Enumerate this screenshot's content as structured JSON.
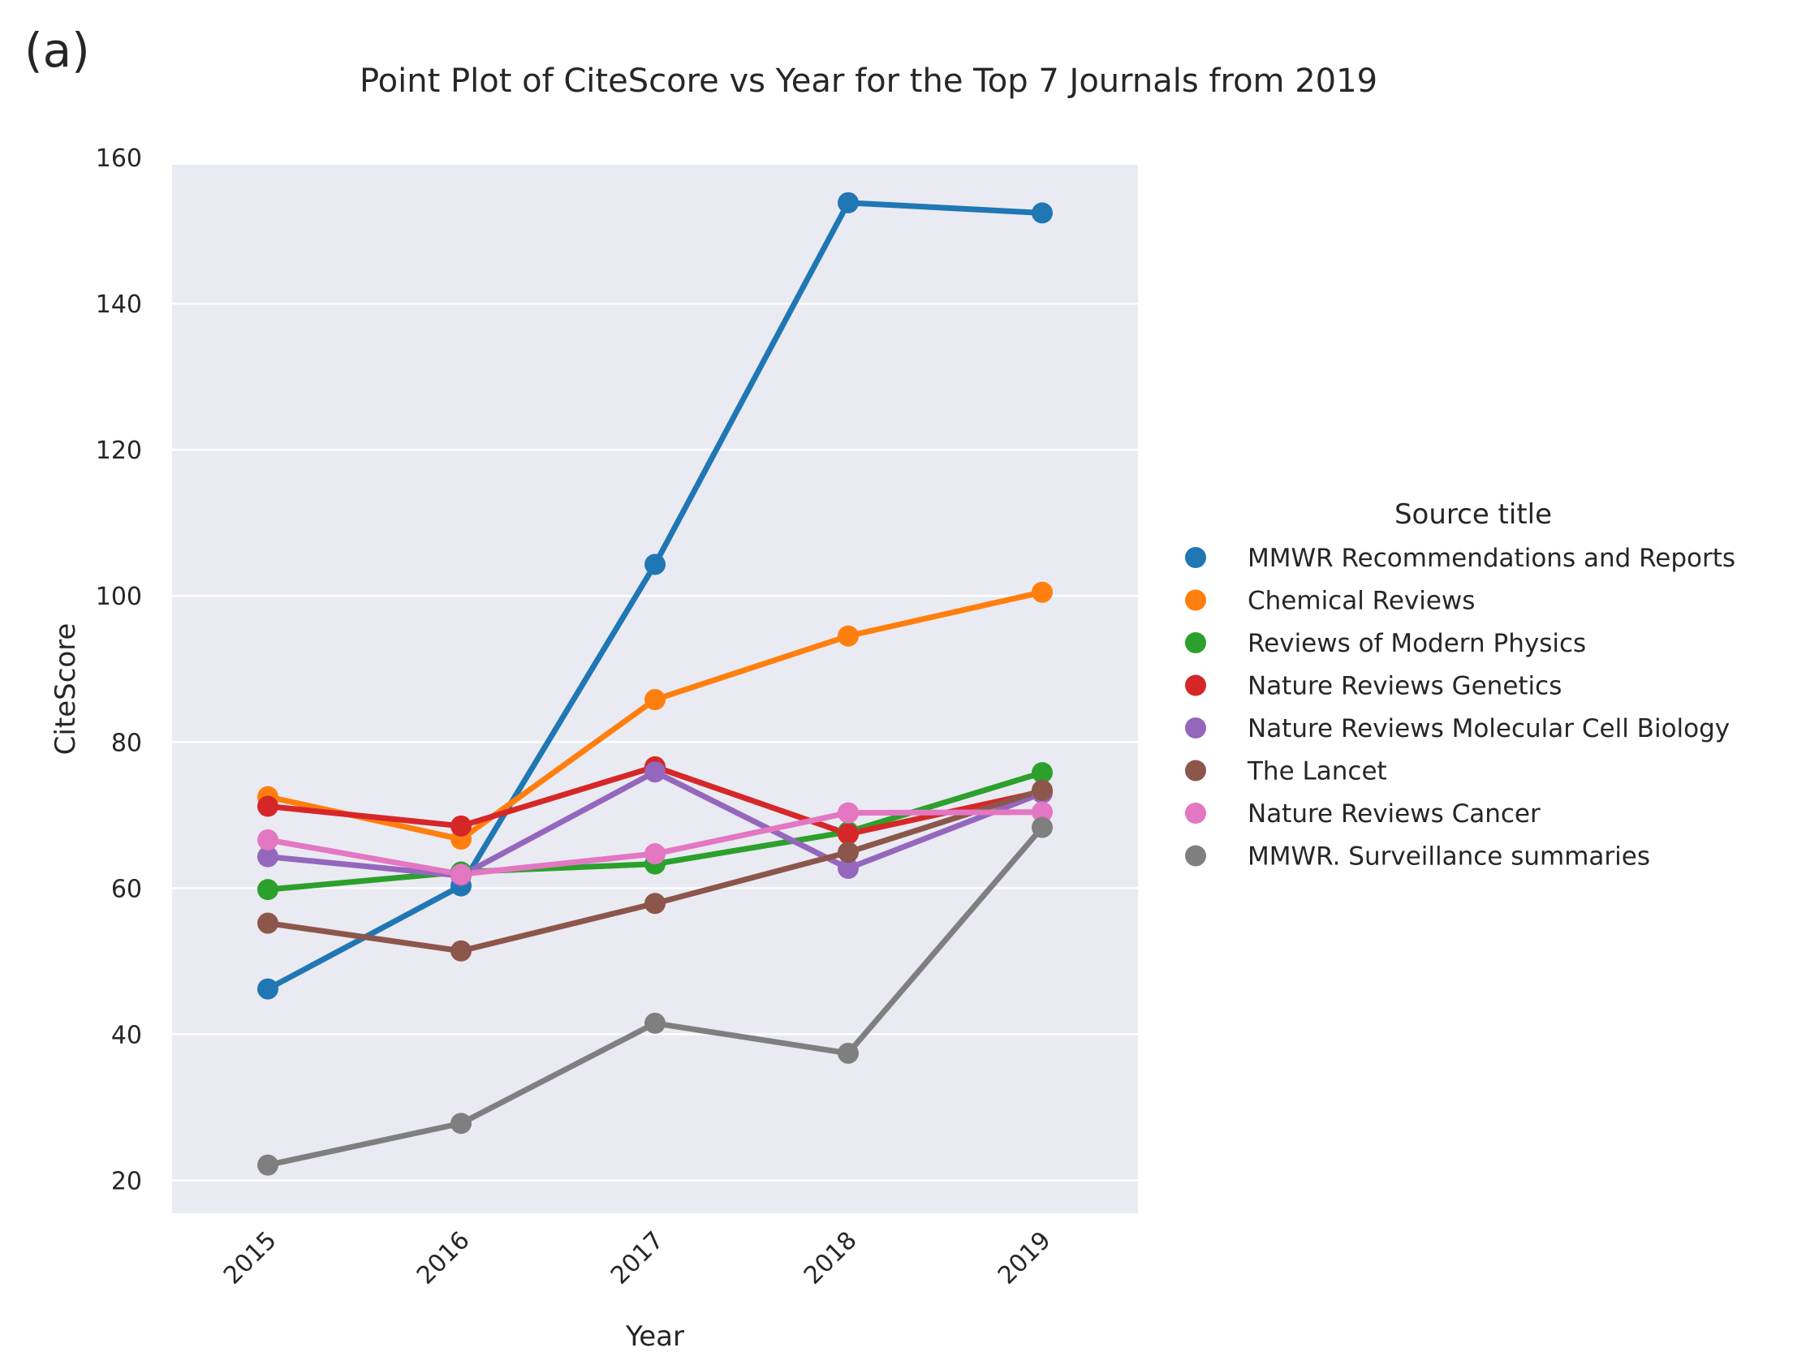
{
  "panel_label": "(a)",
  "chart_data": {
    "type": "line",
    "title": "Point Plot of CiteScore vs Year for the Top 7 Journals from 2019",
    "xlabel": "Year",
    "ylabel": "CiteScore",
    "categories": [
      "2015",
      "2016",
      "2017",
      "2018",
      "2019"
    ],
    "ylim": [
      15.5,
      159
    ],
    "yticks": [
      20,
      40,
      60,
      80,
      100,
      120,
      140,
      160
    ],
    "grid": true,
    "legend": {
      "title": "Source title",
      "position": "right"
    },
    "series": [
      {
        "name": "MMWR Recommendations and Reports",
        "color": "#1f77b4",
        "values": [
          46.2,
          60.3,
          104.3,
          153.8,
          152.4
        ]
      },
      {
        "name": "Chemical Reviews",
        "color": "#ff7f0e",
        "values": [
          72.5,
          66.7,
          85.8,
          94.5,
          100.5
        ]
      },
      {
        "name": "Reviews of Modern Physics",
        "color": "#2ca02c",
        "values": [
          59.8,
          62.2,
          63.3,
          67.7,
          75.8
        ]
      },
      {
        "name": "Nature Reviews Genetics",
        "color": "#d62728",
        "values": [
          71.2,
          68.5,
          76.6,
          67.4,
          73.2
        ]
      },
      {
        "name": "Nature Reviews Molecular Cell Biology",
        "color": "#9467bd",
        "values": [
          64.3,
          61.7,
          75.9,
          62.7,
          73.0
        ]
      },
      {
        "name": "The Lancet",
        "color": "#8c564b",
        "values": [
          55.2,
          51.4,
          57.9,
          64.9,
          73.4
        ]
      },
      {
        "name": "Nature Reviews Cancer",
        "color": "#e377c2",
        "values": [
          66.6,
          61.9,
          64.7,
          70.3,
          70.4
        ]
      },
      {
        "name": "MMWR. Surveillance summaries",
        "color": "#7f7f7f",
        "values": [
          22.1,
          27.8,
          41.5,
          37.4,
          68.3
        ]
      }
    ]
  }
}
